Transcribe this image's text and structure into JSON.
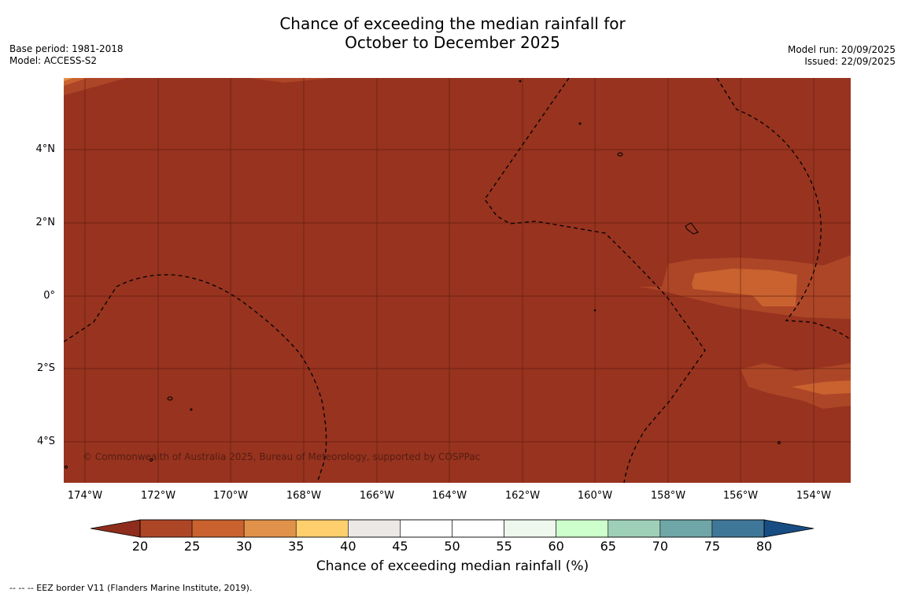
{
  "title": {
    "line1": "Chance of exceeding the median rainfall for",
    "line2": "October to December 2025"
  },
  "meta_left": {
    "base_period": "Base period: 1981-2018",
    "model": "Model: ACCESS-S2"
  },
  "meta_right": {
    "model_run": "Model run: 20/09/2025",
    "issued": "Issued: 22/09/2025"
  },
  "map": {
    "lat_labels": [
      "4°N",
      "2°N",
      "0°",
      "2°S",
      "4°S"
    ],
    "lon_labels": [
      "174°W",
      "172°W",
      "170°W",
      "168°W",
      "166°W",
      "164°W",
      "162°W",
      "160°W",
      "158°W",
      "156°W",
      "154°W"
    ],
    "copyright": "© Commonwealth of Australia 2025, Bureau of Meteorology, supported by COSPPac",
    "background_color": "#97331f"
  },
  "colorbar": {
    "ticks": [
      "20",
      "25",
      "30",
      "35",
      "40",
      "45",
      "50",
      "55",
      "60",
      "65",
      "70",
      "75",
      "80"
    ],
    "colors": [
      "#ad4627",
      "#c9622f",
      "#e0924a",
      "#fecf6c",
      "#ebe8e5",
      "#ffffff",
      "#ffffff",
      "#eef8ed",
      "#ccffcc",
      "#9ed0b7",
      "#6fa6a7",
      "#3f7798"
    ],
    "low_extend_color": "#8e2d1c",
    "high_extend_color": "#184d84",
    "label": "Chance of exceeding median rainfall (%)"
  },
  "footer": "--  --  -- EEZ border V11 (Flanders Marine Institute, 2019)."
}
